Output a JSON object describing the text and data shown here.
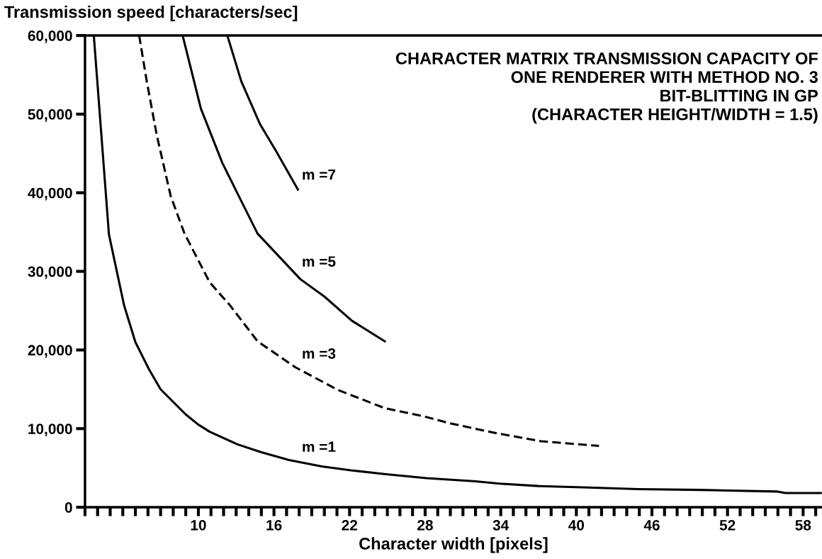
{
  "chart_data": {
    "type": "line",
    "title": "CHARACTER MATRIX TRANSMISSION CAPACITY OF\nONE RENDERER WITH METHOD NO. 3\nBIT-BLITTING IN GP\n(CHARACTER HEIGHT/WIDTH = 1.5)",
    "xlabel": "Character width [pixels]",
    "ylabel": "Transmission speed [characters/sec]",
    "series": [
      {
        "name": "m =1",
        "color": "#000000",
        "line_style": "solid",
        "x": [
          1.7,
          2.9,
          3.5,
          4.1,
          5.0,
          6.06,
          7.0,
          9.0,
          10.0,
          10.9,
          13.1,
          15.0,
          17.2,
          19.8,
          22.1,
          24.9,
          28.1,
          32.0,
          33.9,
          37.0,
          41.0,
          44.9,
          49.9,
          55.9,
          56.6,
          59.4
        ],
        "values": [
          60000,
          34700,
          30200,
          25700,
          21000,
          17600,
          15000,
          11800,
          10500,
          9600,
          8000,
          7000,
          6000,
          5200,
          4700,
          4200,
          3700,
          3300,
          3000,
          2700,
          2500,
          2300,
          2200,
          2000,
          1800,
          1800
        ]
      },
      {
        "name": "m =3",
        "color": "#000000",
        "line_style": "dashed",
        "x": [
          5.3,
          5.9,
          6.7,
          7.8,
          8.9,
          10.9,
          12.5,
          14.7,
          17.7,
          21.1,
          24.8,
          27.8,
          29.9,
          33.7,
          37.2,
          41.8
        ],
        "values": [
          60000,
          54200,
          47300,
          39600,
          34800,
          28600,
          25700,
          21100,
          17800,
          14900,
          12600,
          11600,
          10700,
          9400,
          8400,
          7800
        ]
      },
      {
        "name": "m =5",
        "color": "#000000",
        "line_style": "solid",
        "x": [
          8.75,
          10.2,
          11.9,
          13.2,
          14.7,
          18.1,
          20.0,
          22.2,
          24.8
        ],
        "values": [
          60000,
          50700,
          43800,
          39600,
          34800,
          29000,
          26800,
          23700,
          21100
        ]
      },
      {
        "name": "m =7",
        "color": "#000000",
        "line_style": "solid",
        "x": [
          12.3,
          13.4,
          14.9,
          16.2,
          17.9
        ],
        "values": [
          60000,
          54200,
          48700,
          45200,
          40400
        ]
      }
    ],
    "xlim": [
      1,
      59.5
    ],
    "ylim": [
      0,
      60000
    ],
    "xticks": [
      {
        "value": 1,
        "label": null
      },
      {
        "value": 2,
        "label": null
      },
      {
        "value": 3,
        "label": null
      },
      {
        "value": 4,
        "label": null
      },
      {
        "value": 5,
        "label": null
      },
      {
        "value": 6,
        "label": null
      },
      {
        "value": 7,
        "label": null
      },
      {
        "value": 8,
        "label": null
      },
      {
        "value": 9,
        "label": null
      },
      10,
      {
        "value": 11,
        "label": null
      },
      {
        "value": 12,
        "label": null
      },
      {
        "value": 13,
        "label": null
      },
      {
        "value": 14,
        "label": null
      },
      {
        "value": 15,
        "label": null
      },
      16,
      {
        "value": 17,
        "label": null
      },
      {
        "value": 18,
        "label": null
      },
      {
        "value": 19,
        "label": null
      },
      {
        "value": 20,
        "label": null
      },
      {
        "value": 21,
        "label": null
      },
      22,
      {
        "value": 23,
        "label": null
      },
      {
        "value": 24,
        "label": null
      },
      {
        "value": 25,
        "label": null
      },
      {
        "value": 26,
        "label": null
      },
      {
        "value": 27,
        "label": null
      },
      28,
      {
        "value": 29,
        "label": null
      },
      {
        "value": 30,
        "label": null
      },
      {
        "value": 31,
        "label": null
      },
      {
        "value": 32,
        "label": null
      },
      {
        "value": 33,
        "label": null
      },
      34,
      {
        "value": 35,
        "label": null
      },
      {
        "value": 36,
        "label": null
      },
      {
        "value": 37,
        "label": null
      },
      {
        "value": 38,
        "label": null
      },
      {
        "value": 39,
        "label": null
      },
      40,
      {
        "value": 41,
        "label": null
      },
      {
        "value": 42,
        "label": null
      },
      {
        "value": 43,
        "label": null
      },
      {
        "value": 44,
        "label": null
      },
      {
        "value": 45,
        "label": null
      },
      46,
      {
        "value": 47,
        "label": null
      },
      {
        "value": 48,
        "label": null
      },
      {
        "value": 49,
        "label": null
      },
      {
        "value": 50,
        "label": null
      },
      {
        "value": 51,
        "label": null
      },
      52,
      {
        "value": 53,
        "label": null
      },
      {
        "value": 54,
        "label": null
      },
      {
        "value": 55,
        "label": null
      },
      {
        "value": 56,
        "label": null
      },
      {
        "value": 57,
        "label": null
      },
      58,
      {
        "value": 59,
        "label": null
      }
    ],
    "yticks": [
      0,
      {
        "value": 10000,
        "label": "10,000"
      },
      {
        "value": 20000,
        "label": "20,000"
      },
      {
        "value": 30000,
        "label": "30,000"
      },
      {
        "value": 40000,
        "label": "40,000"
      },
      {
        "value": 50000,
        "label": "50,000"
      },
      {
        "value": 60000,
        "label": "60,000"
      }
    ],
    "grid": false,
    "legend": false,
    "marker": "none"
  }
}
